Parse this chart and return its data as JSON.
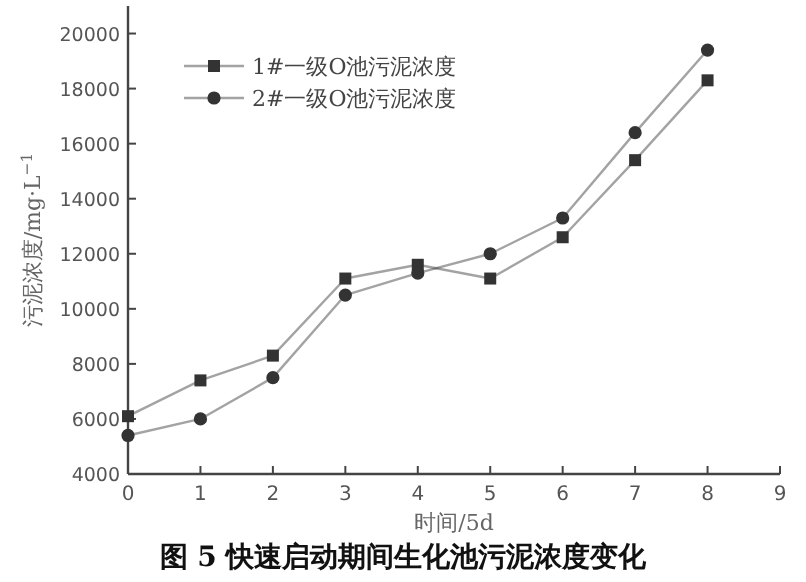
{
  "chart_data": {
    "type": "line",
    "xlabel": "时间/5d",
    "ylabel": "污泥浓度/mg·L$^{−1}$",
    "annotations": [
      "图 5  快速启动期间生化池污泥浓度变化"
    ],
    "x": [
      0,
      1,
      2,
      3,
      4,
      5,
      6,
      7,
      8
    ],
    "series": [
      {
        "name": "1#一级O池污泥浓度",
        "color": "#333333",
        "marker": "square",
        "values": [
          6100,
          7400,
          8300,
          11100,
          11600,
          11100,
          12600,
          15400,
          18300
        ]
      },
      {
        "name": "2#一级O池污泥浓度",
        "color": "#333333",
        "marker": "circle",
        "values": [
          5400,
          6000,
          7500,
          10500,
          11300,
          12000,
          13300,
          16400,
          19400
        ]
      }
    ],
    "xlim": [
      0,
      9
    ],
    "xticks": [
      0,
      1,
      2,
      3,
      4,
      5,
      6,
      7,
      8,
      9
    ],
    "ylim": [
      4000,
      21000
    ],
    "yticks": [
      4000,
      6000,
      8000,
      10000,
      12000,
      14000,
      16000,
      18000,
      20000
    ],
    "grid": false,
    "legend": "top left",
    "line_style": "solid"
  }
}
